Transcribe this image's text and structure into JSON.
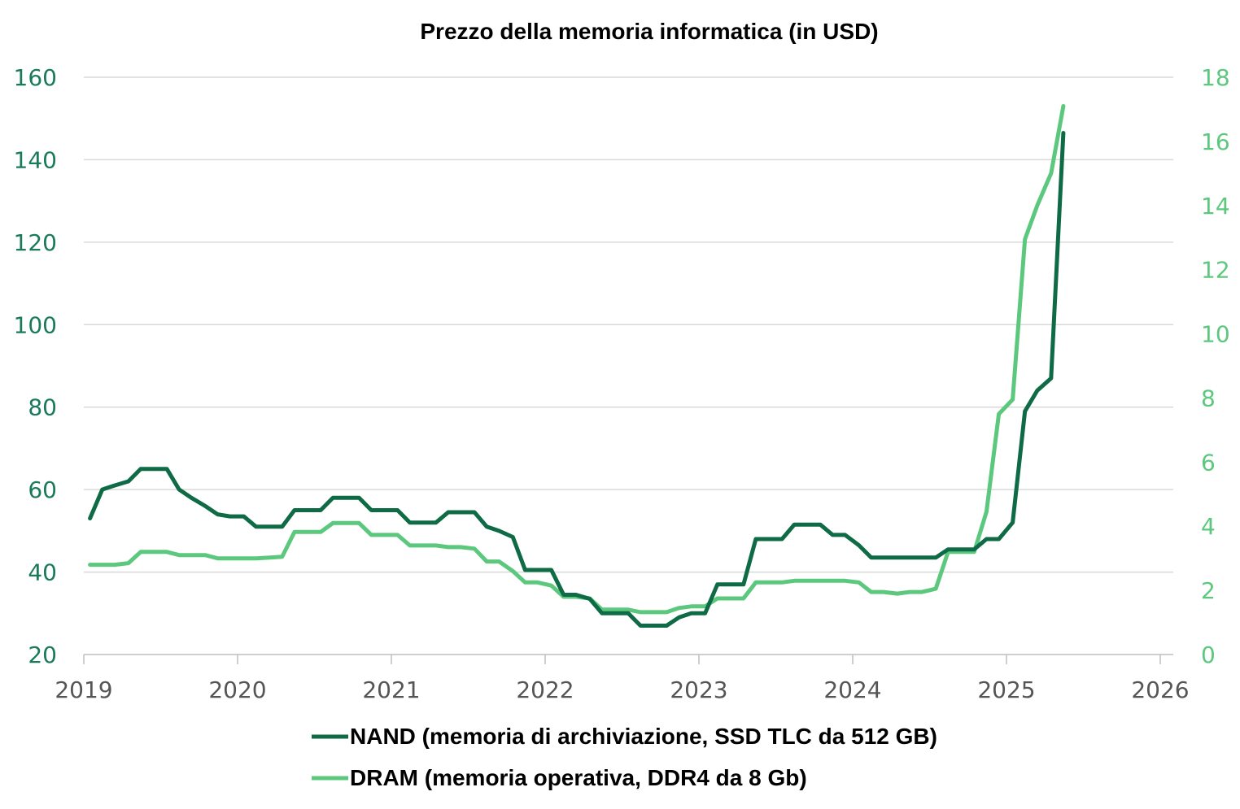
{
  "colors": {
    "nand": "#0e6b45",
    "dram": "#5cc87e",
    "grid": "#d9d9d9",
    "left_axis_text": "#1a7a5c",
    "right_axis_text": "#5cc87e",
    "x_axis_text": "#555555"
  },
  "chart_data": {
    "type": "line",
    "title": "Prezzo della memoria informatica (in USD)",
    "xlabel": "",
    "ylabel": "",
    "x_ticks": [
      "2019",
      "2020",
      "2021",
      "2022",
      "2023",
      "2024",
      "2025",
      "2026"
    ],
    "xlim": [
      2019,
      2026
    ],
    "y_left": {
      "ylim": [
        20,
        160
      ],
      "ticks": [
        "20",
        "40",
        "60",
        "80",
        "100",
        "120",
        "140",
        "160"
      ]
    },
    "y_right": {
      "ylim": [
        0,
        18
      ],
      "ticks": [
        "0",
        "2",
        "4",
        "6",
        "8",
        "10",
        "12",
        "14",
        "16",
        "18"
      ]
    },
    "grid": true,
    "legend_position": "bottom",
    "series": [
      {
        "name": "NAND (memoria di archiviazione, SSD TLC da 512 GB)",
        "axis": "left",
        "x": [
          2019.04,
          2019.12,
          2019.2,
          2019.29,
          2019.37,
          2019.45,
          2019.54,
          2019.62,
          2019.7,
          2019.79,
          2019.87,
          2019.95,
          2020.04,
          2020.12,
          2020.2,
          2020.29,
          2020.37,
          2020.45,
          2020.54,
          2020.62,
          2020.7,
          2020.79,
          2020.87,
          2020.95,
          2021.04,
          2021.12,
          2021.2,
          2021.29,
          2021.37,
          2021.45,
          2021.54,
          2021.62,
          2021.7,
          2021.79,
          2021.87,
          2021.95,
          2022.04,
          2022.12,
          2022.2,
          2022.29,
          2022.37,
          2022.45,
          2022.54,
          2022.62,
          2022.7,
          2022.79,
          2022.87,
          2022.95,
          2023.04,
          2023.12,
          2023.2,
          2023.29,
          2023.37,
          2023.45,
          2023.54,
          2023.62,
          2023.7,
          2023.79,
          2023.87,
          2023.95,
          2024.04,
          2024.12,
          2024.2,
          2024.29,
          2024.37,
          2024.45,
          2024.54,
          2024.62,
          2024.7,
          2024.79,
          2024.87,
          2024.95,
          2025.04,
          2025.12,
          2025.2,
          2025.29,
          2025.37
        ],
        "values": [
          53,
          60,
          61,
          62,
          65,
          65,
          65,
          60,
          58,
          56,
          54,
          53.5,
          53.5,
          51,
          51,
          51,
          55,
          55,
          55,
          58,
          58,
          58,
          55,
          55,
          55,
          52,
          52,
          52,
          54.5,
          54.5,
          54.5,
          51,
          50,
          48.5,
          40.5,
          40.5,
          40.5,
          34.5,
          34.5,
          33.5,
          30,
          30,
          30,
          27,
          27,
          27,
          29,
          30,
          30,
          37,
          37,
          37,
          48,
          48,
          48,
          51.5,
          51.5,
          51.5,
          49,
          49,
          46.5,
          43.5,
          43.5,
          43.5,
          43.5,
          43.5,
          43.5,
          45.5,
          45.5,
          45.5,
          48,
          48,
          52,
          79,
          84,
          87,
          146.5
        ]
      },
      {
        "name": "DRAM (memoria operativa, DDR4 da 8 Gb)",
        "axis": "right",
        "x": [
          2019.04,
          2019.12,
          2019.2,
          2019.29,
          2019.37,
          2019.45,
          2019.54,
          2019.62,
          2019.7,
          2019.79,
          2019.87,
          2019.95,
          2020.04,
          2020.12,
          2020.2,
          2020.29,
          2020.37,
          2020.45,
          2020.54,
          2020.62,
          2020.7,
          2020.79,
          2020.87,
          2020.95,
          2021.04,
          2021.12,
          2021.2,
          2021.29,
          2021.37,
          2021.45,
          2021.54,
          2021.62,
          2021.7,
          2021.79,
          2021.87,
          2021.95,
          2022.04,
          2022.12,
          2022.2,
          2022.29,
          2022.37,
          2022.45,
          2022.54,
          2022.62,
          2022.7,
          2022.79,
          2022.87,
          2022.95,
          2023.04,
          2023.12,
          2023.2,
          2023.29,
          2023.37,
          2023.45,
          2023.54,
          2023.62,
          2023.7,
          2023.79,
          2023.87,
          2023.95,
          2024.04,
          2024.12,
          2024.2,
          2024.29,
          2024.37,
          2024.45,
          2024.54,
          2024.62,
          2024.7,
          2024.79,
          2024.87,
          2024.95,
          2025.04,
          2025.12,
          2025.2,
          2025.29,
          2025.37
        ],
        "values": [
          2.8,
          2.8,
          2.8,
          2.85,
          3.2,
          3.2,
          3.2,
          3.1,
          3.1,
          3.1,
          3.0,
          3.0,
          3.0,
          3.0,
          3.02,
          3.05,
          3.82,
          3.82,
          3.82,
          4.1,
          4.1,
          4.1,
          3.73,
          3.73,
          3.73,
          3.4,
          3.4,
          3.4,
          3.35,
          3.35,
          3.3,
          2.9,
          2.9,
          2.6,
          2.25,
          2.25,
          2.15,
          1.8,
          1.8,
          1.75,
          1.4,
          1.4,
          1.4,
          1.32,
          1.32,
          1.32,
          1.45,
          1.5,
          1.5,
          1.75,
          1.75,
          1.75,
          2.25,
          2.25,
          2.25,
          2.3,
          2.3,
          2.3,
          2.3,
          2.3,
          2.25,
          1.95,
          1.95,
          1.9,
          1.95,
          1.95,
          2.05,
          3.2,
          3.2,
          3.2,
          4.45,
          7.5,
          7.95,
          12.95,
          14.0,
          15.0,
          17.1
        ]
      }
    ]
  }
}
